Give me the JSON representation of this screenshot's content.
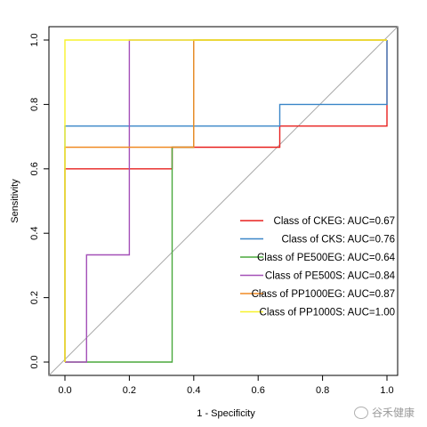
{
  "chart_data": {
    "type": "line",
    "xlabel": "1 - Specificity",
    "ylabel": "Sensitivity",
    "xlim": [
      0,
      1
    ],
    "ylim": [
      0,
      1
    ],
    "x_ticks": [
      0.0,
      0.2,
      0.4,
      0.6,
      0.8,
      1.0
    ],
    "y_ticks": [
      0.0,
      0.2,
      0.4,
      0.6,
      0.8,
      1.0
    ],
    "x_tick_labels": [
      "0.0",
      "0.2",
      "0.4",
      "0.6",
      "0.8",
      "1.0"
    ],
    "y_tick_labels": [
      "0.0",
      "0.2",
      "0.4",
      "0.6",
      "0.8",
      "1.0"
    ],
    "grid": false,
    "reference_line": {
      "from": [
        0,
        0
      ],
      "to": [
        1,
        1
      ],
      "color": "#aaaaaa"
    },
    "legend_position": "bottom-right",
    "series": [
      {
        "name": "Class of CKEG: AUC=0.67",
        "color": "#e8201e",
        "x": [
          0,
          0,
          0.333,
          0.333,
          0.667,
          0.667,
          1.0,
          1.0
        ],
        "y": [
          0,
          0.6,
          0.6,
          0.667,
          0.667,
          0.733,
          0.733,
          1.0
        ]
      },
      {
        "name": "Class of CKS: AUC=0.76",
        "color": "#3a86c8",
        "x": [
          0,
          0,
          0.667,
          0.667,
          1.0,
          1.0
        ],
        "y": [
          0,
          0.733,
          0.733,
          0.8,
          0.8,
          1.0
        ]
      },
      {
        "name": "Class of PE500EG: AUC=0.64",
        "color": "#4aa83c",
        "x": [
          0,
          0.333,
          0.333,
          0.4,
          0.4,
          1.0
        ],
        "y": [
          0,
          0,
          0.667,
          0.667,
          1.0,
          1.0
        ]
      },
      {
        "name": "Class of PE500S: AUC=0.84",
        "color": "#a450b8",
        "x": [
          0,
          0.067,
          0.067,
          0.2,
          0.2,
          1.0
        ],
        "y": [
          0,
          0,
          0.333,
          0.333,
          1.0,
          1.0
        ]
      },
      {
        "name": "Class of PP1000EG: AUC=0.87",
        "color": "#f08a24",
        "x": [
          0,
          0,
          0.4,
          0.4,
          1.0
        ],
        "y": [
          0,
          0.667,
          0.667,
          1.0,
          1.0
        ]
      },
      {
        "name": "Class of PP1000S: AUC=1.00",
        "color": "#f7f22c",
        "x": [
          0,
          0,
          1.0
        ],
        "y": [
          0,
          1.0,
          1.0
        ]
      }
    ]
  },
  "watermark": {
    "text": "谷禾健康"
  }
}
